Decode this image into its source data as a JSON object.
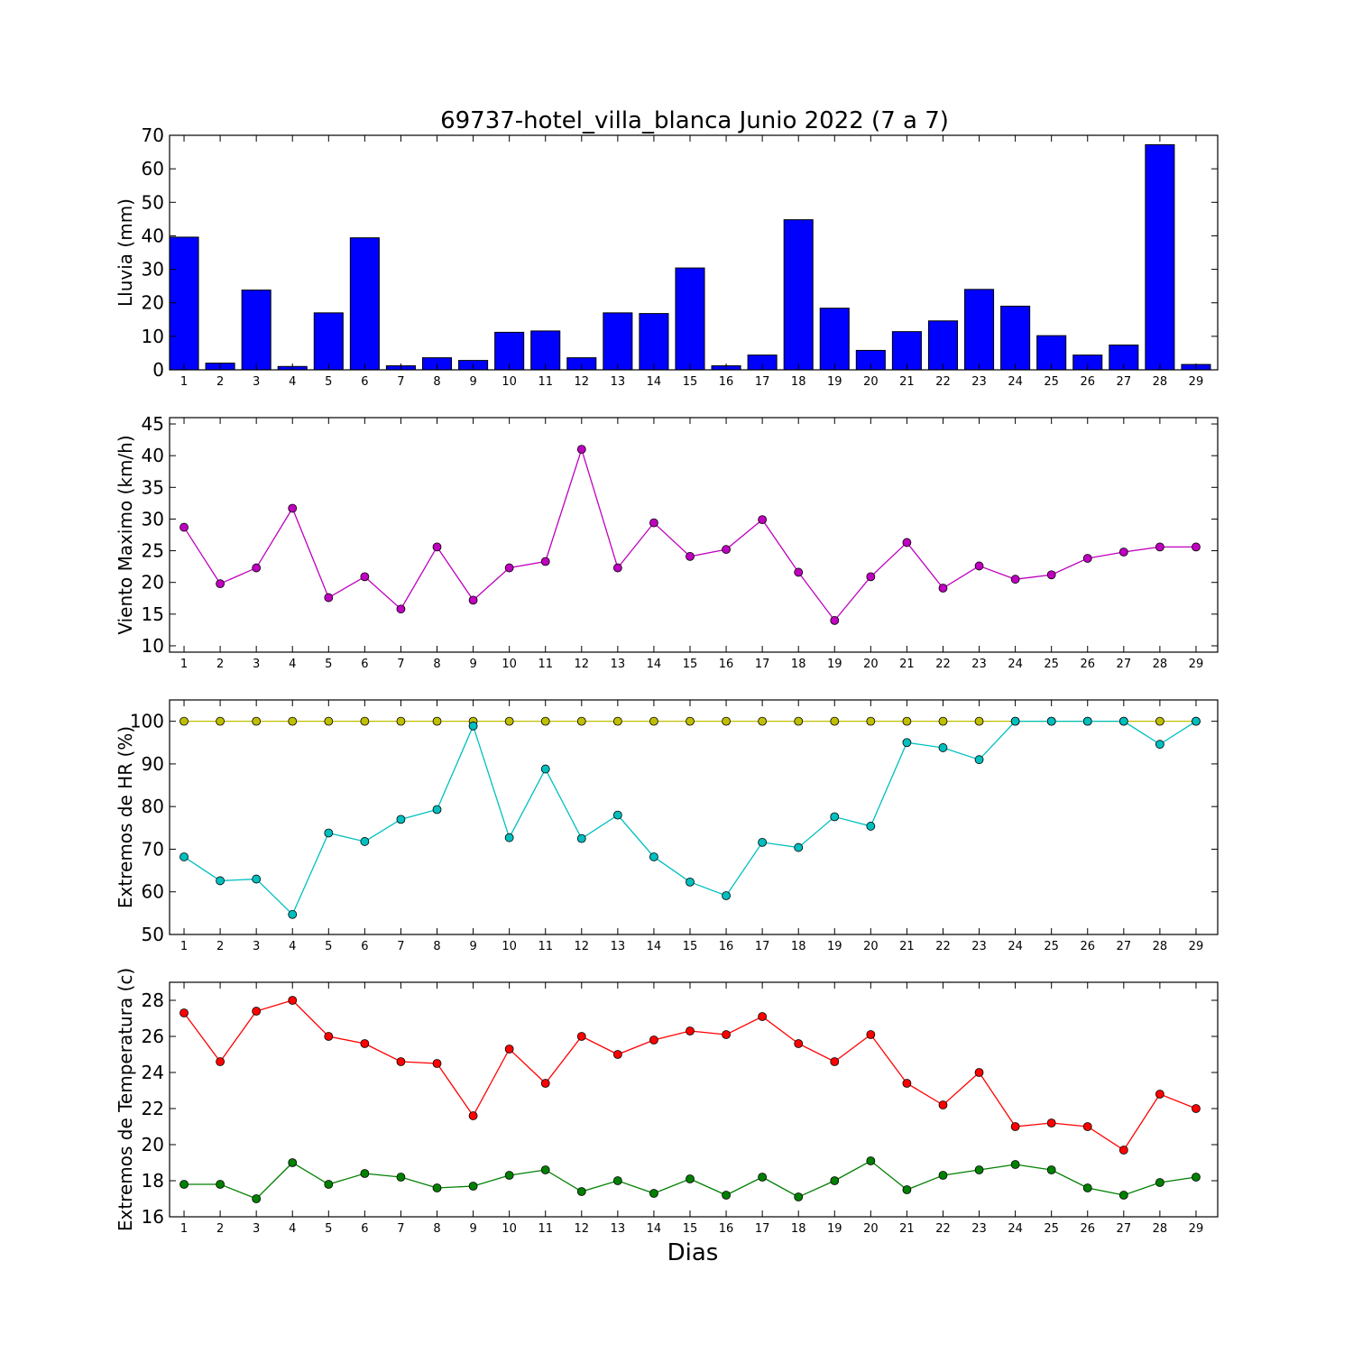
{
  "figure": {
    "title": "69737-hotel_villa_blanca Junio 2022  (7 a 7)",
    "xlabel": "Dias"
  },
  "chart_data": [
    {
      "type": "bar",
      "ylabel": "Lluvia (mm)",
      "ylim": [
        0,
        70
      ],
      "yticks": [
        0,
        10,
        20,
        30,
        40,
        50,
        60,
        70
      ],
      "xticks": [
        1,
        2,
        3,
        4,
        5,
        6,
        7,
        8,
        9,
        10,
        11,
        12,
        13,
        14,
        15,
        16,
        17,
        18,
        19,
        20,
        21,
        22,
        23,
        24,
        25,
        26,
        27,
        28,
        29
      ],
      "series": [
        {
          "color": "#0000ff",
          "values": [
            39.6,
            2.0,
            23.8,
            1.0,
            17.0,
            39.4,
            1.2,
            3.6,
            2.8,
            11.2,
            11.6,
            3.6,
            17.0,
            16.8,
            30.4,
            1.2,
            4.4,
            44.8,
            18.4,
            5.8,
            11.4,
            14.6,
            24.0,
            19.0,
            10.2,
            4.4,
            7.4,
            67.2,
            1.6
          ]
        }
      ]
    },
    {
      "type": "line",
      "ylabel": "Viento Maximo (km/h)",
      "ylim": [
        9,
        46
      ],
      "yticks": [
        10,
        15,
        20,
        25,
        30,
        35,
        40,
        45
      ],
      "xticks": [
        1,
        2,
        3,
        4,
        5,
        6,
        7,
        8,
        9,
        10,
        11,
        12,
        13,
        14,
        15,
        16,
        17,
        18,
        19,
        20,
        21,
        22,
        23,
        24,
        25,
        26,
        27,
        28,
        29
      ],
      "series": [
        {
          "color": "#bf00bf",
          "values": [
            28.7,
            19.8,
            22.3,
            31.7,
            17.6,
            20.9,
            15.8,
            25.6,
            17.2,
            22.3,
            23.3,
            41.0,
            22.3,
            29.4,
            24.1,
            25.2,
            29.9,
            21.6,
            14.0,
            20.9,
            26.3,
            19.1,
            22.6,
            20.5,
            21.2,
            23.8,
            24.8,
            25.6,
            25.6
          ]
        }
      ]
    },
    {
      "type": "line",
      "ylabel": "Extremos de HR (%)",
      "ylim": [
        50,
        105
      ],
      "yticks": [
        50,
        60,
        70,
        80,
        90,
        100
      ],
      "xticks": [
        1,
        2,
        3,
        4,
        5,
        6,
        7,
        8,
        9,
        10,
        11,
        12,
        13,
        14,
        15,
        16,
        17,
        18,
        19,
        20,
        21,
        22,
        23,
        24,
        25,
        26,
        27,
        28,
        29
      ],
      "series": [
        {
          "color": "#bfbf00",
          "values": [
            100,
            100,
            100,
            100,
            100,
            100,
            100,
            100,
            100,
            100,
            100,
            100,
            100,
            100,
            100,
            100,
            100,
            100,
            100,
            100,
            100,
            100,
            100,
            100,
            100,
            100,
            100,
            100,
            100
          ]
        },
        {
          "color": "#00bfbf",
          "values": [
            68.2,
            62.6,
            63.0,
            54.7,
            73.8,
            71.8,
            77.0,
            79.3,
            98.9,
            72.7,
            88.8,
            72.5,
            78.0,
            68.2,
            62.3,
            59.1,
            71.6,
            70.4,
            77.6,
            75.4,
            95.0,
            93.8,
            91.0,
            100,
            100,
            100,
            100,
            94.6,
            100
          ]
        }
      ]
    },
    {
      "type": "line",
      "ylabel": "Extremos de Temperatura (c)",
      "ylim": [
        16,
        29
      ],
      "yticks": [
        16,
        18,
        20,
        22,
        24,
        26,
        28
      ],
      "xticks": [
        1,
        2,
        3,
        4,
        5,
        6,
        7,
        8,
        9,
        10,
        11,
        12,
        13,
        14,
        15,
        16,
        17,
        18,
        19,
        20,
        21,
        22,
        23,
        24,
        25,
        26,
        27,
        28,
        29
      ],
      "series": [
        {
          "color": "#ff0000",
          "values": [
            27.3,
            24.6,
            27.4,
            28.0,
            26.0,
            25.6,
            24.6,
            24.5,
            21.6,
            25.3,
            23.4,
            26.0,
            25.0,
            25.8,
            26.3,
            26.1,
            27.1,
            25.6,
            24.6,
            26.1,
            23.4,
            22.2,
            24.0,
            21.0,
            21.2,
            21.0,
            19.7,
            22.8,
            22.0
          ]
        },
        {
          "color": "#008000",
          "values": [
            17.8,
            17.8,
            17.0,
            19.0,
            17.8,
            18.4,
            18.2,
            17.6,
            17.7,
            18.3,
            18.6,
            17.4,
            18.0,
            17.3,
            18.1,
            17.2,
            18.2,
            17.1,
            18.0,
            19.1,
            17.5,
            18.3,
            18.6,
            18.9,
            18.6,
            17.6,
            17.2,
            17.9,
            18.2
          ]
        }
      ]
    }
  ]
}
